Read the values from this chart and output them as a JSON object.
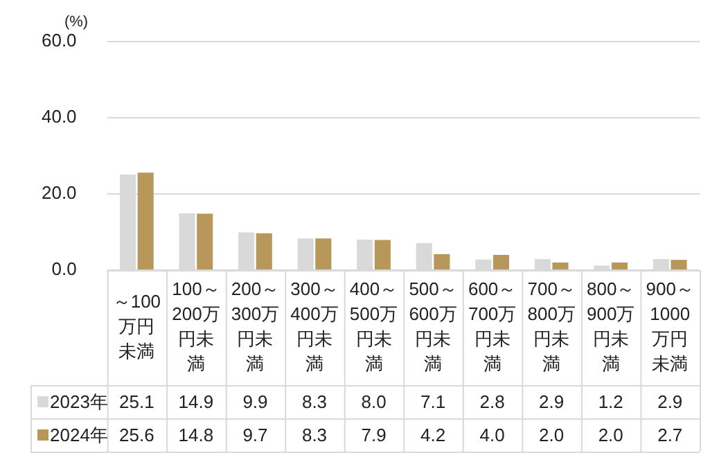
{
  "chart_data": {
    "type": "bar",
    "ylabel": "(%)",
    "categories": [
      "～100万円未満",
      "100～200万円未満",
      "200～300万円未満",
      "300～400万円未満",
      "400～500万円未満",
      "500～600万円未満",
      "600～700万円未満",
      "700～800万円未満",
      "800～900万円未満",
      "900～1000万円未満"
    ],
    "series": [
      {
        "name": "2023年",
        "color": "#d9d9d9",
        "values": [
          25.1,
          14.9,
          9.9,
          8.3,
          8.0,
          7.1,
          2.8,
          2.9,
          1.2,
          2.9
        ],
        "value_labels": [
          "25.1",
          "14.9",
          "9.9",
          "8.3",
          "8.0",
          "7.1",
          "2.8",
          "2.9",
          "1.2",
          "2.9"
        ]
      },
      {
        "name": "2024年",
        "color": "#b8975a",
        "values": [
          25.6,
          14.8,
          9.7,
          8.3,
          7.9,
          4.2,
          4.0,
          2.0,
          2.0,
          2.7
        ],
        "value_labels": [
          "25.6",
          "14.8",
          "9.7",
          "8.3",
          "7.9",
          "4.2",
          "4.0",
          "2.0",
          "2.0",
          "2.7"
        ]
      }
    ],
    "ylim": [
      0,
      60
    ],
    "yticks": [
      {
        "value": 0,
        "label": "0.0"
      },
      {
        "value": 20,
        "label": "20.0"
      },
      {
        "value": 40,
        "label": "40.0"
      },
      {
        "value": 60,
        "label": "60.0"
      }
    ],
    "grid": "y",
    "legend": "bottom left"
  }
}
